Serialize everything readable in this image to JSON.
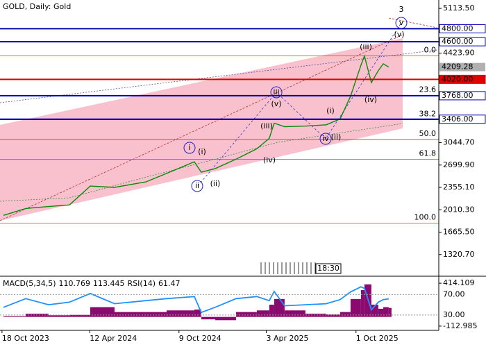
{
  "chart_data": [
    {
      "type": "line",
      "title": "GOLD, Daily:  Gold",
      "color": "#0a8a0a",
      "x": [
        "21 Oct 2023",
        "5 Dec 2023",
        "20 Jan 2024",
        "2 Mar 2024",
        "13 Apr 2024",
        "1 Jun 2024",
        "3 Aug 2024",
        "14 Sep 2024",
        "9 Nov 2024",
        "23 Nov 2024",
        "21 Dec 2024",
        "1 Feb 2025",
        "15 Mar 2025",
        "9 Apr 2025",
        "19 Apr 2025",
        "10 May 2025",
        "21 Jun 2025",
        "2 Aug 2025",
        "30 Aug 2025",
        "20 Sep 2025",
        "11 Oct 2025",
        "18 Oct 2025",
        "1 Nov 2025",
        "15 Nov 2025",
        "25 Nov 2025",
        "6 Dec 2025"
      ],
      "values": [
        1925,
        2030,
        2060,
        2085,
        2376,
        2355,
        2440,
        2570,
        2750,
        2590,
        2645,
        2790,
        2950,
        3110,
        3345,
        3290,
        3300,
        3320,
        3410,
        3760,
        4240,
        4380,
        3970,
        4155,
        4260,
        4209.28
      ],
      "xlim": [
        "14 Oct 2023",
        "17 Mar 2026"
      ],
      "xticks": [
        "18 Oct 2023",
        "12 Apr 2024",
        "9 Oct 2024",
        "3 Apr 2025",
        "1 Oct 2025"
      ],
      "ylim": [
        1008,
        5243
      ],
      "yticks": [
        {
          "value": 5113.5,
          "label": "5113.50"
        },
        {
          "value": 4423.9,
          "label": "4423.90"
        },
        {
          "value": 3044.7,
          "label": "3044.70"
        },
        {
          "value": 2699.9,
          "label": "2699.90"
        },
        {
          "value": 2355.1,
          "label": "2355.10"
        },
        {
          "value": 2010.3,
          "label": "2010.30"
        },
        {
          "value": 1665.5,
          "label": "1665.50"
        },
        {
          "value": 1320.7,
          "label": "1320.70"
        }
      ],
      "levels": [
        {
          "value": 4800,
          "label": "4800.00",
          "color": "#0000b0"
        },
        {
          "value": 4600,
          "label": "4600.00",
          "color": "#0000b0"
        },
        {
          "value": 4020,
          "label": "4020.00",
          "color": "#e00000"
        },
        {
          "value": 3768,
          "label": "3768.00",
          "color": "#0000b0"
        },
        {
          "value": 3406,
          "label": "3406.00",
          "color": "#0000b0"
        }
      ],
      "fibonacci": [
        {
          "value": 4381,
          "label": "0.0"
        },
        {
          "value": 3773,
          "label": "23.6"
        },
        {
          "value": 3397,
          "label": "38.2"
        },
        {
          "value": 3093,
          "label": "50.0"
        },
        {
          "value": 2789,
          "label": "61.8"
        },
        {
          "value": 1805,
          "label": "100.0"
        }
      ],
      "annotations": [
        "3",
        "v",
        "(v)",
        "(iii)",
        "(iv)",
        "iii",
        "(v)",
        "(iii)",
        "(i)",
        "iv",
        "(ii)",
        "i",
        "(i)",
        "ii",
        "(ii)",
        "(iv)"
      ],
      "time_marker": "18:30"
    },
    {
      "type": "macd",
      "title": "MACD(5,34,5)",
      "signal": 113.445,
      "rsi_title": "RSI(14)",
      "color": "#8b0a6e",
      "rsi_color": "#1e90ff",
      "values": [
        10,
        40,
        20,
        25,
        120,
        60,
        60,
        80,
        90,
        -30,
        -40,
        60,
        80,
        150,
        220,
        80,
        40,
        30,
        60,
        220,
        330,
        400,
        150,
        100,
        120,
        110.769
      ],
      "rsi_values": [
        45,
        62,
        50,
        55,
        72,
        52,
        58,
        62,
        66,
        35,
        45,
        62,
        66,
        58,
        76,
        48,
        50,
        52,
        60,
        75,
        85,
        82,
        40,
        55,
        60,
        61.47
      ],
      "ylim": [
        -165,
        483
      ],
      "yticks": [
        414.109,
        -112.985
      ],
      "y2lim": [
        0,
        103
      ],
      "y2ticks": [
        {
          "value": 70,
          "label": "70.00"
        },
        {
          "value": 30,
          "label": "30.00"
        }
      ]
    }
  ]
}
